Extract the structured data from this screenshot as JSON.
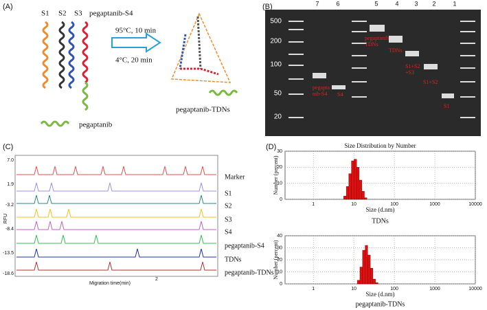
{
  "panel_a": {
    "label": "(A)",
    "strands": [
      "S1",
      "S2",
      "S3",
      "pegaptanib-S4"
    ],
    "step1": "95°C, 10 min",
    "step2": "4°C, 20 min",
    "product": "pegaptanib-TDNs",
    "legend": "pegaptanib"
  },
  "panel_b": {
    "label": "(B)",
    "lanes": [
      "7",
      "6",
      "5",
      "4",
      "3",
      "2",
      "1"
    ],
    "ladder": [
      "500",
      "200",
      "100",
      "50",
      "20"
    ],
    "bands": [
      [
        "pegapta",
        "nib-S4"
      ],
      [
        "S4"
      ],
      [
        "pegaptanib",
        "TDNs"
      ],
      [
        "TDNs"
      ],
      [
        "S1+S2",
        "+S3"
      ],
      [
        "S1+S2"
      ],
      [
        "S1"
      ]
    ]
  },
  "panel_c": {
    "label": "(C)",
    "y_axis_label": "RFU",
    "x_axis_label": "Migration time(min)",
    "x_tick": "2",
    "y_labels": [
      "7.0",
      "1.9",
      "-3.2",
      "-8.4",
      "-13.5",
      "-18.6"
    ],
    "traces": [
      "Marker",
      "S1",
      "S2",
      "S3",
      "S4",
      "pegaptanib-S4",
      "TDNs",
      "pegaptanib-TDNs"
    ]
  },
  "panel_d": {
    "label": "(D)"
  },
  "chart_data": [
    {
      "type": "histogram",
      "title": "Size Distribution by Number",
      "y_label": "Number (percent)",
      "x_label": "Size (d.nm)",
      "caption": "TDNs",
      "color": "#e01010",
      "log_x": true,
      "grid": true,
      "bins": [
        5.6,
        6.5,
        7.5,
        8.7,
        10.1,
        11.7,
        13.5,
        15.7,
        18.2,
        21.0
      ],
      "values": [
        2,
        8,
        16,
        24,
        25,
        20,
        12,
        5,
        1
      ],
      "xlim": [
        0.2,
        10000
      ],
      "xticks": [
        1,
        10,
        100,
        1000,
        10000
      ],
      "ylim": [
        0,
        30
      ],
      "yticks": [
        0,
        10,
        20,
        30
      ]
    },
    {
      "type": "histogram",
      "y_label": "Number (percent)",
      "x_label": "Size (d.nm)",
      "caption": "pegaptanib-TDNs",
      "color": "#e01010",
      "log_x": true,
      "grid": true,
      "bins": [
        12.2,
        14.1,
        16.4,
        19.0,
        22.0,
        25.5,
        29.5,
        34.2,
        39.6
      ],
      "values": [
        3,
        14,
        28,
        32,
        24,
        13,
        4,
        1
      ],
      "xlim": [
        0.2,
        10000
      ],
      "xticks": [
        1,
        10,
        100,
        1000,
        10000
      ],
      "ylim": [
        0,
        40
      ],
      "yticks": [
        0,
        10,
        20,
        30,
        40
      ]
    }
  ]
}
